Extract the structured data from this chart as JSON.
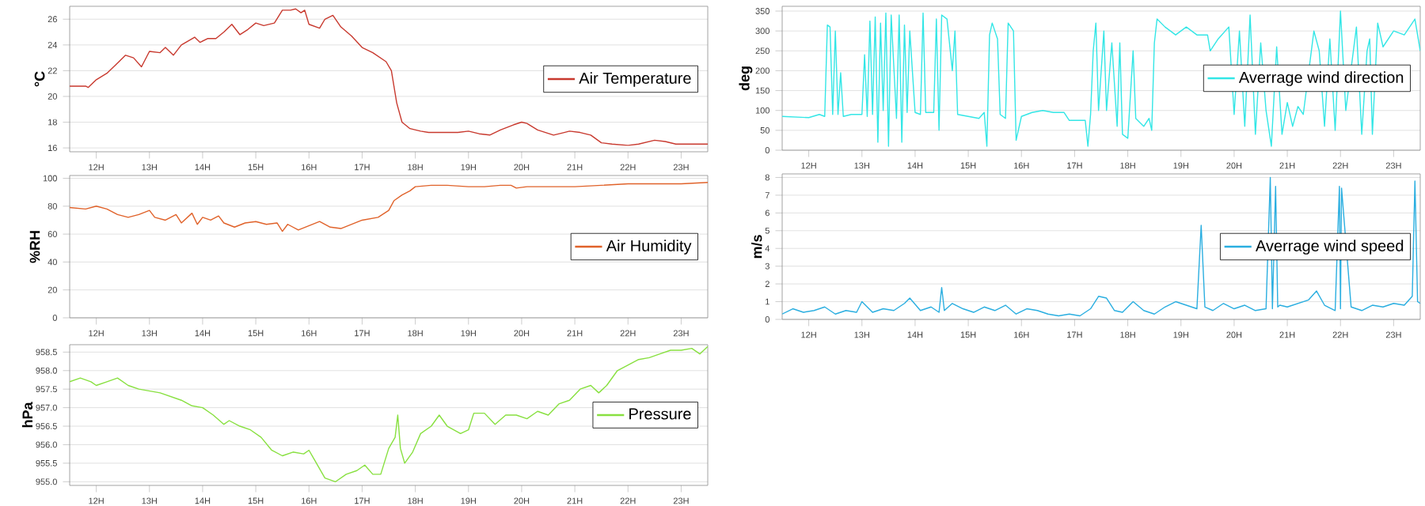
{
  "chart_data": [
    {
      "type": "line",
      "ylabel": "°C",
      "xlim": [
        11.5,
        23.5
      ],
      "ylim": [
        15.7,
        27
      ],
      "grid": "y",
      "legend": "right",
      "xticks": [
        {
          "value": 12,
          "label": "12H"
        },
        {
          "value": 13,
          "label": "13H"
        },
        {
          "value": 14,
          "label": "14H"
        },
        {
          "value": 15,
          "label": "15H"
        },
        {
          "value": 16,
          "label": "16H"
        },
        {
          "value": 17,
          "label": "17H"
        },
        {
          "value": 18,
          "label": "18H"
        },
        {
          "value": 19,
          "label": "19H"
        },
        {
          "value": 20,
          "label": "20H"
        },
        {
          "value": 21,
          "label": "21H"
        },
        {
          "value": 22,
          "label": "22H"
        },
        {
          "value": 23,
          "label": "23H"
        }
      ],
      "yticks": [
        16,
        18,
        20,
        22,
        24,
        26
      ],
      "series": [
        {
          "name": "Air Temperature",
          "color": "#c8392e",
          "x": [
            11.5,
            11.8,
            11.85,
            12.0,
            12.2,
            12.4,
            12.55,
            12.7,
            12.85,
            13.0,
            13.2,
            13.3,
            13.45,
            13.6,
            13.85,
            13.95,
            14.1,
            14.25,
            14.4,
            14.55,
            14.7,
            14.85,
            15.0,
            15.15,
            15.35,
            15.5,
            15.65,
            15.75,
            15.85,
            15.92,
            16.0,
            16.2,
            16.3,
            16.45,
            16.6,
            16.8,
            17.0,
            17.2,
            17.45,
            17.55,
            17.65,
            17.75,
            17.9,
            18.1,
            18.25,
            18.5,
            18.8,
            19.0,
            19.2,
            19.4,
            19.6,
            19.85,
            20.0,
            20.1,
            20.3,
            20.6,
            20.8,
            20.9,
            21.1,
            21.3,
            21.5,
            21.7,
            22.0,
            22.2,
            22.5,
            22.7,
            22.9,
            23.5
          ],
          "values": [
            20.8,
            20.8,
            20.7,
            21.3,
            21.8,
            22.6,
            23.2,
            23.0,
            22.3,
            23.5,
            23.4,
            23.8,
            23.2,
            24.0,
            24.6,
            24.2,
            24.5,
            24.5,
            25.0,
            25.6,
            24.8,
            25.2,
            25.7,
            25.5,
            25.7,
            26.7,
            26.7,
            26.8,
            26.5,
            26.7,
            25.6,
            25.3,
            26.0,
            26.3,
            25.4,
            24.7,
            23.8,
            23.4,
            22.7,
            22.0,
            19.5,
            18.0,
            17.5,
            17.3,
            17.2,
            17.2,
            17.2,
            17.3,
            17.1,
            17.0,
            17.4,
            17.8,
            18.0,
            17.9,
            17.4,
            17.0,
            17.2,
            17.3,
            17.2,
            17.0,
            16.4,
            16.3,
            16.2,
            16.3,
            16.6,
            16.5,
            16.3,
            16.3
          ]
        }
      ]
    },
    {
      "type": "line",
      "ylabel": "%RH",
      "xlim": [
        11.5,
        23.5
      ],
      "ylim": [
        0,
        102
      ],
      "grid": "y",
      "legend": "right",
      "xticks": [
        {
          "value": 12,
          "label": "12H"
        },
        {
          "value": 13,
          "label": "13H"
        },
        {
          "value": 14,
          "label": "14H"
        },
        {
          "value": 15,
          "label": "15H"
        },
        {
          "value": 16,
          "label": "16H"
        },
        {
          "value": 17,
          "label": "17H"
        },
        {
          "value": 18,
          "label": "18H"
        },
        {
          "value": 19,
          "label": "19H"
        },
        {
          "value": 20,
          "label": "20H"
        },
        {
          "value": 21,
          "label": "21H"
        },
        {
          "value": 22,
          "label": "22H"
        },
        {
          "value": 23,
          "label": "23H"
        }
      ],
      "yticks": [
        0,
        20,
        40,
        60,
        80,
        100
      ],
      "series": [
        {
          "name": "Air Humidity",
          "color": "#e0622a",
          "x": [
            11.5,
            11.8,
            12.0,
            12.2,
            12.4,
            12.6,
            12.8,
            13.0,
            13.1,
            13.3,
            13.5,
            13.6,
            13.8,
            13.9,
            14.0,
            14.15,
            14.3,
            14.4,
            14.6,
            14.8,
            15.0,
            15.2,
            15.4,
            15.5,
            15.6,
            15.8,
            16.0,
            16.2,
            16.4,
            16.6,
            16.8,
            17.0,
            17.3,
            17.5,
            17.6,
            17.75,
            17.9,
            18.0,
            18.3,
            18.6,
            19.0,
            19.3,
            19.6,
            19.8,
            19.9,
            20.1,
            20.5,
            21.0,
            21.5,
            22.0,
            22.5,
            23.0,
            23.5
          ],
          "values": [
            79,
            78,
            80,
            78,
            74,
            72,
            74,
            77,
            72,
            70,
            74,
            68,
            75,
            67,
            72,
            70,
            73,
            68,
            65,
            68,
            69,
            67,
            68,
            62,
            67,
            63,
            66,
            69,
            65,
            64,
            67,
            70,
            72,
            77,
            84,
            88,
            91,
            94,
            95,
            95,
            94,
            94,
            95,
            95,
            93,
            94,
            94,
            94,
            95,
            96,
            96,
            96,
            97
          ]
        }
      ]
    },
    {
      "type": "line",
      "ylabel": "hPa",
      "xlim": [
        11.5,
        23.5
      ],
      "ylim": [
        954.9,
        958.7
      ],
      "grid": "y",
      "legend": "right",
      "xticks": [
        {
          "value": 12,
          "label": "12H"
        },
        {
          "value": 13,
          "label": "13H"
        },
        {
          "value": 14,
          "label": "14H"
        },
        {
          "value": 15,
          "label": "15H"
        },
        {
          "value": 16,
          "label": "16H"
        },
        {
          "value": 17,
          "label": "17H"
        },
        {
          "value": 18,
          "label": "18H"
        },
        {
          "value": 19,
          "label": "19H"
        },
        {
          "value": 20,
          "label": "20H"
        },
        {
          "value": 21,
          "label": "21H"
        },
        {
          "value": 22,
          "label": "22H"
        },
        {
          "value": 23,
          "label": "23H"
        }
      ],
      "yticks": [
        {
          "value": 955,
          "label": "955.0"
        },
        {
          "value": 955.5,
          "label": "955.5"
        },
        {
          "value": 956,
          "label": "956.0"
        },
        {
          "value": 956.5,
          "label": "956.5"
        },
        {
          "value": 957,
          "label": "957.0"
        },
        {
          "value": 957.5,
          "label": "957.5"
        },
        {
          "value": 958,
          "label": "958.0"
        },
        {
          "value": 958.5,
          "label": "958.5"
        }
      ],
      "series": [
        {
          "name": "Pressure",
          "color": "#88e040",
          "x": [
            11.5,
            11.7,
            11.9,
            12.0,
            12.2,
            12.4,
            12.6,
            12.8,
            13.0,
            13.2,
            13.4,
            13.6,
            13.8,
            14.0,
            14.2,
            14.4,
            14.5,
            14.7,
            14.9,
            15.1,
            15.3,
            15.5,
            15.7,
            15.9,
            16.0,
            16.1,
            16.3,
            16.5,
            16.7,
            16.9,
            17.05,
            17.2,
            17.35,
            17.5,
            17.62,
            17.67,
            17.72,
            17.8,
            17.95,
            18.1,
            18.3,
            18.45,
            18.6,
            18.85,
            19.0,
            19.1,
            19.3,
            19.5,
            19.7,
            19.9,
            20.1,
            20.3,
            20.5,
            20.7,
            20.9,
            21.1,
            21.3,
            21.45,
            21.6,
            21.8,
            22.0,
            22.2,
            22.4,
            22.6,
            22.8,
            23.0,
            23.2,
            23.35,
            23.5
          ],
          "values": [
            957.7,
            957.8,
            957.7,
            957.6,
            957.7,
            957.8,
            957.6,
            957.5,
            957.45,
            957.4,
            957.3,
            957.2,
            957.05,
            957.0,
            956.8,
            956.55,
            956.65,
            956.5,
            956.4,
            956.2,
            955.85,
            955.7,
            955.8,
            955.75,
            955.85,
            955.6,
            955.1,
            955.0,
            955.2,
            955.3,
            955.45,
            955.2,
            955.2,
            955.9,
            956.2,
            956.8,
            955.9,
            955.5,
            955.8,
            956.3,
            956.5,
            956.8,
            956.5,
            956.3,
            956.4,
            956.85,
            956.85,
            956.55,
            956.8,
            956.8,
            956.7,
            956.9,
            956.8,
            957.1,
            957.2,
            957.5,
            957.6,
            957.4,
            957.6,
            958.0,
            958.15,
            958.3,
            958.35,
            958.45,
            958.55,
            958.55,
            958.6,
            958.45,
            958.65
          ]
        }
      ]
    },
    {
      "type": "line",
      "ylabel": "deg",
      "xlim": [
        11.5,
        23.5
      ],
      "ylim": [
        0,
        362
      ],
      "grid": "y",
      "legend": "right",
      "xticks": [
        {
          "value": 12,
          "label": "12H"
        },
        {
          "value": 13,
          "label": "13H"
        },
        {
          "value": 14,
          "label": "14H"
        },
        {
          "value": 15,
          "label": "15H"
        },
        {
          "value": 16,
          "label": "16H"
        },
        {
          "value": 17,
          "label": "17H"
        },
        {
          "value": 18,
          "label": "18H"
        },
        {
          "value": 19,
          "label": "19H"
        },
        {
          "value": 20,
          "label": "20H"
        },
        {
          "value": 21,
          "label": "21H"
        },
        {
          "value": 22,
          "label": "22H"
        },
        {
          "value": 23,
          "label": "23H"
        }
      ],
      "yticks": [
        0,
        50,
        100,
        150,
        200,
        250,
        300,
        350
      ],
      "series": [
        {
          "name": "Averrage wind direction",
          "color": "#33e6e6",
          "x": [
            11.5,
            12.0,
            12.2,
            12.3,
            12.35,
            12.4,
            12.45,
            12.5,
            12.55,
            12.6,
            12.65,
            12.8,
            13.0,
            13.05,
            13.1,
            13.15,
            13.2,
            13.25,
            13.3,
            13.35,
            13.4,
            13.45,
            13.5,
            13.55,
            13.65,
            13.7,
            13.75,
            13.8,
            13.85,
            13.9,
            14.0,
            14.1,
            14.15,
            14.2,
            14.35,
            14.4,
            14.45,
            14.5,
            14.6,
            14.7,
            14.75,
            14.8,
            15.0,
            15.2,
            15.3,
            15.35,
            15.4,
            15.45,
            15.55,
            15.6,
            15.7,
            15.75,
            15.85,
            15.9,
            16.0,
            16.2,
            16.4,
            16.6,
            16.8,
            16.9,
            17.2,
            17.25,
            17.3,
            17.35,
            17.4,
            17.45,
            17.55,
            17.6,
            17.7,
            17.8,
            17.85,
            17.9,
            18.0,
            18.1,
            18.15,
            18.3,
            18.4,
            18.45,
            18.5,
            18.55,
            18.7,
            18.9,
            19.1,
            19.3,
            19.5,
            19.55,
            19.7,
            19.8,
            19.9,
            20.0,
            20.1,
            20.2,
            20.3,
            20.4,
            20.5,
            20.6,
            20.7,
            20.8,
            20.9,
            21.0,
            21.1,
            21.2,
            21.3,
            21.5,
            21.6,
            21.7,
            21.8,
            21.9,
            22.0,
            22.1,
            22.2,
            22.3,
            22.4,
            22.5,
            22.55,
            22.6,
            22.7,
            22.8,
            23.0,
            23.2,
            23.4,
            23.5
          ],
          "values": [
            85,
            82,
            90,
            85,
            315,
            310,
            90,
            300,
            90,
            195,
            85,
            90,
            90,
            240,
            85,
            325,
            90,
            335,
            20,
            320,
            100,
            345,
            10,
            340,
            80,
            340,
            20,
            315,
            95,
            300,
            95,
            90,
            345,
            95,
            95,
            330,
            50,
            340,
            330,
            200,
            300,
            90,
            85,
            80,
            95,
            10,
            290,
            320,
            280,
            90,
            80,
            320,
            300,
            25,
            85,
            95,
            100,
            95,
            95,
            75,
            75,
            10,
            90,
            250,
            320,
            100,
            300,
            100,
            270,
            60,
            270,
            40,
            30,
            250,
            80,
            60,
            80,
            50,
            270,
            330,
            310,
            290,
            310,
            290,
            290,
            250,
            280,
            null,
            310,
            90,
            300,
            60,
            340,
            40,
            270,
            100,
            10,
            260,
            40,
            120,
            60,
            110,
            90,
            300,
            250,
            60,
            280,
            50,
            350,
            100,
            null,
            310,
            40,
            250,
            280,
            40,
            320,
            260,
            300,
            290,
            330,
            250
          ]
        }
      ]
    },
    {
      "type": "line",
      "ylabel": "m/s",
      "xlim": [
        11.5,
        23.5
      ],
      "ylim": [
        0,
        8.2
      ],
      "grid": "y",
      "legend": "right",
      "xticks": [
        {
          "value": 12,
          "label": "12H"
        },
        {
          "value": 13,
          "label": "13H"
        },
        {
          "value": 14,
          "label": "14H"
        },
        {
          "value": 15,
          "label": "15H"
        },
        {
          "value": 16,
          "label": "16H"
        },
        {
          "value": 17,
          "label": "17H"
        },
        {
          "value": 18,
          "label": "18H"
        },
        {
          "value": 19,
          "label": "19H"
        },
        {
          "value": 20,
          "label": "20H"
        },
        {
          "value": 21,
          "label": "21H"
        },
        {
          "value": 22,
          "label": "22H"
        },
        {
          "value": 23,
          "label": "23H"
        }
      ],
      "yticks": [
        0,
        1,
        2,
        3,
        4,
        5,
        6,
        7,
        8
      ],
      "series": [
        {
          "name": "Averrage wind speed",
          "color": "#2aaee0",
          "x": [
            11.5,
            11.7,
            11.9,
            12.1,
            12.3,
            12.5,
            12.7,
            12.9,
            13.0,
            13.2,
            13.4,
            13.6,
            13.8,
            13.9,
            14.1,
            14.3,
            14.45,
            14.5,
            14.55,
            14.7,
            14.9,
            15.1,
            15.3,
            15.5,
            15.7,
            15.9,
            16.1,
            16.3,
            16.5,
            16.7,
            16.9,
            17.1,
            17.3,
            17.45,
            17.6,
            17.75,
            17.9,
            18.1,
            18.3,
            18.5,
            18.7,
            18.9,
            19.1,
            19.3,
            19.38,
            19.45,
            19.6,
            19.8,
            20.0,
            20.2,
            20.4,
            20.6,
            20.68,
            20.72,
            20.78,
            20.82,
            20.86,
            21.0,
            21.2,
            21.4,
            21.55,
            21.7,
            21.9,
            21.98,
            22.0,
            22.02,
            22.2,
            22.4,
            22.6,
            22.8,
            23.0,
            23.2,
            23.35,
            23.4,
            23.45,
            23.5
          ],
          "values": [
            0.3,
            0.6,
            0.4,
            0.5,
            0.7,
            0.3,
            0.5,
            0.4,
            1.0,
            0.4,
            0.6,
            0.5,
            0.9,
            1.2,
            0.5,
            0.7,
            0.4,
            1.8,
            0.5,
            0.9,
            0.6,
            0.4,
            0.7,
            0.5,
            0.8,
            0.3,
            0.6,
            0.5,
            0.3,
            0.2,
            0.3,
            0.2,
            0.6,
            1.3,
            1.2,
            0.5,
            0.4,
            1.0,
            0.5,
            0.3,
            0.7,
            1.0,
            0.8,
            0.6,
            5.3,
            0.7,
            0.5,
            0.9,
            0.6,
            0.8,
            0.5,
            0.6,
            8.0,
            0.6,
            7.5,
            0.7,
            0.8,
            0.7,
            0.9,
            1.1,
            1.6,
            0.8,
            0.5,
            7.5,
            0.6,
            7.4,
            0.7,
            0.5,
            0.8,
            0.7,
            0.9,
            0.8,
            1.3,
            7.8,
            1.0,
            0.9
          ]
        }
      ]
    }
  ]
}
